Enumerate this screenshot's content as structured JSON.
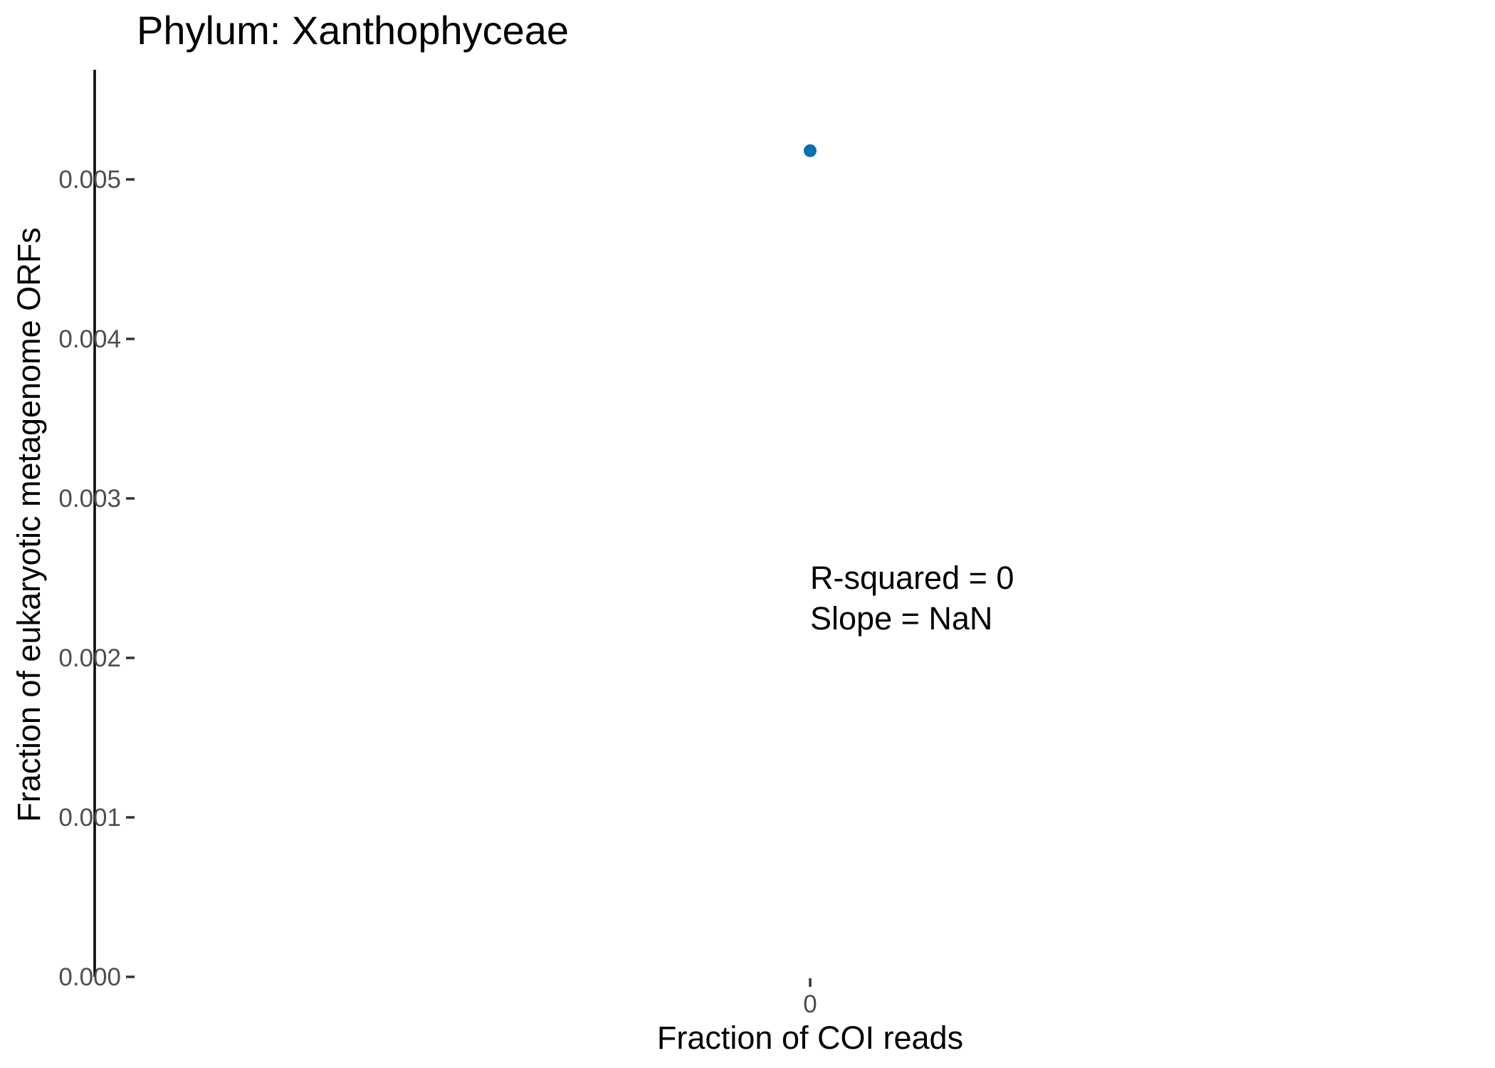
{
  "chart_data": {
    "type": "scatter",
    "title": "Phylum:  Xanthophyceae",
    "xlabel": "Fraction of COI reads",
    "ylabel": "Fraction of eukaryotic metagenome ORFs",
    "x_ticks": [
      "0"
    ],
    "y_ticks": [
      "0.000",
      "0.001",
      "0.002",
      "0.003",
      "0.004",
      "0.005"
    ],
    "ylim": [
      0,
      0.0057
    ],
    "points": [
      {
        "x": 0,
        "y": 0.00518
      }
    ],
    "point_color": "#0072B2",
    "annotations": [
      "R-squared =  0",
      "Slope =  NaN"
    ],
    "grid": false,
    "legend": "none"
  }
}
